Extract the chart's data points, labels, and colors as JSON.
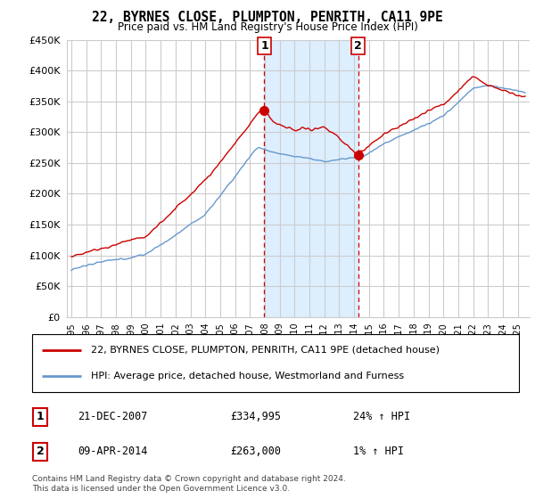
{
  "title": "22, BYRNES CLOSE, PLUMPTON, PENRITH, CA11 9PE",
  "subtitle": "Price paid vs. HM Land Registry's House Price Index (HPI)",
  "legend_label_red": "22, BYRNES CLOSE, PLUMPTON, PENRITH, CA11 9PE (detached house)",
  "legend_label_blue": "HPI: Average price, detached house, Westmorland and Furness",
  "transaction1_label": "1",
  "transaction1_date": "21-DEC-2007",
  "transaction1_price": "£334,995",
  "transaction1_hpi": "24% ↑ HPI",
  "transaction2_label": "2",
  "transaction2_date": "09-APR-2014",
  "transaction2_price": "£263,000",
  "transaction2_hpi": "1% ↑ HPI",
  "footer": "Contains HM Land Registry data © Crown copyright and database right 2024.\nThis data is licensed under the Open Government Licence v3.0.",
  "ylim": [
    0,
    450000
  ],
  "yticks": [
    0,
    50000,
    100000,
    150000,
    200000,
    250000,
    300000,
    350000,
    400000,
    450000
  ],
  "red_color": "#cc0000",
  "blue_color": "#6699cc",
  "bg_color": "#ffffff",
  "grid_color": "#cccccc",
  "highlight_bg": "#ddeeff",
  "vline_color": "#cc0000",
  "transaction1_x": 2007.97,
  "transaction2_x": 2014.27,
  "marker1_y": 334995,
  "marker2_y": 263000,
  "xmin": 1994.7,
  "xmax": 2025.8
}
